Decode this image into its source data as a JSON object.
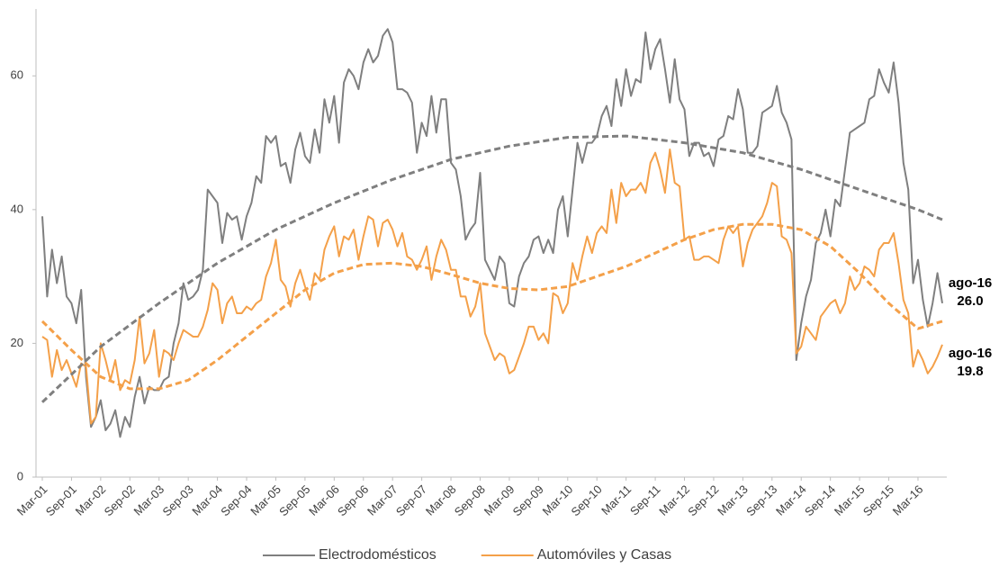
{
  "chart_data": {
    "type": "line",
    "categories": [
      "Mar-01",
      null,
      null,
      null,
      null,
      null,
      "Sep-01",
      null,
      null,
      null,
      null,
      null,
      "Mar-02",
      null,
      null,
      null,
      null,
      null,
      "Sep-02",
      null,
      null,
      null,
      null,
      null,
      "Mar-03",
      null,
      null,
      null,
      null,
      null,
      "Sep-03",
      null,
      null,
      null,
      null,
      null,
      "Mar-04",
      null,
      null,
      null,
      null,
      null,
      "Sep-04",
      null,
      null,
      null,
      null,
      null,
      "Mar-05",
      null,
      null,
      null,
      null,
      null,
      "Sep-05",
      null,
      null,
      null,
      null,
      null,
      "Mar-06",
      null,
      null,
      null,
      null,
      null,
      "Sep-06",
      null,
      null,
      null,
      null,
      null,
      "Mar-07",
      null,
      null,
      null,
      null,
      null,
      "Sep-07",
      null,
      null,
      null,
      null,
      null,
      "Mar-08",
      null,
      null,
      null,
      null,
      null,
      "Sep-08",
      null,
      null,
      null,
      null,
      null,
      "Mar-09",
      null,
      null,
      null,
      null,
      null,
      "Sep-09",
      null,
      null,
      null,
      null,
      null,
      "Mar-10",
      null,
      null,
      null,
      null,
      null,
      "Sep-10",
      null,
      null,
      null,
      null,
      null,
      "Mar-11",
      null,
      null,
      null,
      null,
      null,
      "Sep-11",
      null,
      null,
      null,
      null,
      null,
      "Mar-12",
      null,
      null,
      null,
      null,
      null,
      "Sep-12",
      null,
      null,
      null,
      null,
      null,
      "Mar-13",
      null,
      null,
      null,
      null,
      null,
      "Sep-13",
      null,
      null,
      null,
      null,
      null,
      "Mar-14",
      null,
      null,
      null,
      null,
      null,
      "Sep-14",
      null,
      null,
      null,
      null,
      null,
      "Mar-15",
      null,
      null,
      null,
      null,
      null,
      "Sep-15",
      null,
      null,
      null,
      null,
      null,
      "Mar-16",
      null,
      null,
      null,
      null,
      null
    ],
    "series": [
      {
        "name": "Electrodomésticos",
        "color": "#7f7f7f",
        "values": [
          39,
          27,
          34,
          29,
          33,
          27,
          26,
          23,
          28,
          15,
          7.5,
          9,
          11.5,
          7,
          8,
          10,
          6,
          9,
          7.5,
          12,
          15,
          11,
          13.5,
          13,
          13,
          14.5,
          15,
          20,
          23,
          29,
          26.5,
          27,
          28,
          31,
          43,
          42,
          41,
          35,
          39.5,
          38.5,
          39,
          35.5,
          39,
          41,
          45,
          44,
          51,
          50,
          51,
          46.5,
          47,
          44,
          49,
          51.5,
          48,
          47,
          52,
          48.5,
          56.5,
          53,
          57,
          50,
          59,
          61,
          60,
          58,
          62,
          64,
          62,
          63,
          66,
          67,
          65,
          58,
          58,
          57.5,
          56,
          48.5,
          53,
          51,
          57,
          51.5,
          56.5,
          56.5,
          47,
          46,
          42,
          35.5,
          37,
          38,
          45.5,
          32.5,
          31,
          29.5,
          33,
          32,
          26,
          25.5,
          30,
          32,
          33,
          35.5,
          36,
          33.5,
          35.5,
          33.5,
          40,
          42,
          36,
          43,
          50,
          47,
          50,
          50,
          51,
          54,
          55.5,
          52.5,
          59.5,
          55.5,
          61,
          57,
          59.5,
          59,
          66.5,
          61,
          64,
          65.5,
          61,
          56,
          62.5,
          56.5,
          55,
          48,
          50,
          50,
          48,
          48.5,
          46.5,
          50.5,
          51,
          54,
          53.5,
          58,
          55,
          48.5,
          48.5,
          49.5,
          54.5,
          55,
          55.5,
          58.5,
          54.5,
          53,
          50.5,
          17.5,
          23,
          27,
          29.5,
          35,
          36.5,
          40,
          36,
          41.5,
          40.5,
          46,
          51.5,
          52,
          52.5,
          53,
          56.5,
          57,
          61,
          59,
          57.5,
          62,
          56,
          47,
          43,
          29,
          32.5,
          26.5,
          22.5,
          26,
          30.5,
          26
        ]
      },
      {
        "name": "Automóviles y Casas",
        "color": "#f4a049",
        "values": [
          21,
          20.5,
          15,
          19,
          16,
          17.5,
          15.5,
          13.5,
          17,
          16.5,
          8,
          9,
          20,
          17.5,
          14.5,
          17.5,
          13,
          14.5,
          14,
          17.5,
          24,
          17,
          18.5,
          22,
          15,
          19,
          18.5,
          17.5,
          20,
          22,
          21.5,
          21,
          21,
          22.5,
          25,
          29,
          28,
          23,
          26,
          27,
          24.5,
          24.5,
          25.5,
          25,
          26,
          26.5,
          30,
          32,
          35.5,
          29.5,
          28.5,
          25.5,
          29,
          31,
          28.5,
          26.5,
          30.5,
          29.5,
          34,
          36,
          37.5,
          33,
          36,
          35.5,
          37,
          32.5,
          36,
          39,
          38.5,
          34.5,
          38,
          38.5,
          37,
          34.5,
          36.5,
          33,
          32.5,
          31,
          32.5,
          34.5,
          29.5,
          33,
          35.5,
          34,
          31,
          31,
          27,
          27,
          24,
          25.5,
          29,
          21.5,
          19.5,
          17.5,
          18.5,
          18,
          15.5,
          16,
          18,
          20,
          22.5,
          22.5,
          20.5,
          21.5,
          20,
          27.5,
          27,
          24.5,
          26,
          32,
          29.5,
          33,
          36,
          33.5,
          36.5,
          37.5,
          36.5,
          43,
          38,
          44,
          42,
          43,
          43,
          44,
          42.5,
          47,
          48.5,
          46,
          42.5,
          49,
          44,
          43.5,
          35.5,
          36,
          32.5,
          32.5,
          33,
          33,
          32.5,
          32,
          35.5,
          37.5,
          36.5,
          37.5,
          31.5,
          35,
          37,
          38,
          39,
          41,
          44,
          43.5,
          36,
          35.5,
          33.5,
          18.5,
          19.5,
          22.5,
          21.5,
          20.5,
          24,
          25,
          26,
          26.5,
          24.5,
          26,
          30,
          28,
          29,
          31.5,
          31,
          30,
          34,
          35,
          35,
          36.5,
          32,
          26.5,
          24.5,
          16.5,
          19,
          17.5,
          15.5,
          16.5,
          18,
          19.8
        ]
      },
      {
        "color": "#7f7f7f",
        "dash": true,
        "x": [
          0,
          12,
          24,
          36,
          48,
          60,
          72,
          84,
          96,
          108,
          120,
          132,
          144,
          156,
          168,
          180,
          185
        ],
        "values": [
          11.2,
          19.5,
          26,
          32,
          37,
          41,
          44.5,
          47.5,
          49.5,
          50.8,
          51,
          50,
          48.5,
          46,
          43,
          40,
          38.5
        ]
      },
      {
        "color": "#f4a049",
        "dash": true,
        "x": [
          0,
          6,
          12,
          18,
          24,
          30,
          36,
          42,
          48,
          54,
          60,
          66,
          72,
          78,
          84,
          90,
          96,
          102,
          108,
          114,
          120,
          126,
          132,
          138,
          144,
          150,
          156,
          162,
          168,
          174,
          180,
          185
        ],
        "values": [
          23.3,
          19,
          15,
          13.2,
          13.2,
          14.5,
          17.5,
          21,
          24.5,
          28,
          30.5,
          31.8,
          32,
          31.5,
          30.3,
          29,
          28.2,
          28,
          28.5,
          30,
          31.5,
          33.5,
          35.5,
          37,
          37.8,
          37.8,
          37,
          34.5,
          30.5,
          26,
          22.2,
          23.3
        ]
      }
    ],
    "annotations": [
      {
        "label": "ago-16",
        "value": "26.0"
      },
      {
        "label": "ago-16",
        "value": "19.8"
      }
    ],
    "ylim": [
      0,
      70
    ],
    "yticks": [
      0,
      20,
      40,
      60
    ],
    "grid": false
  }
}
